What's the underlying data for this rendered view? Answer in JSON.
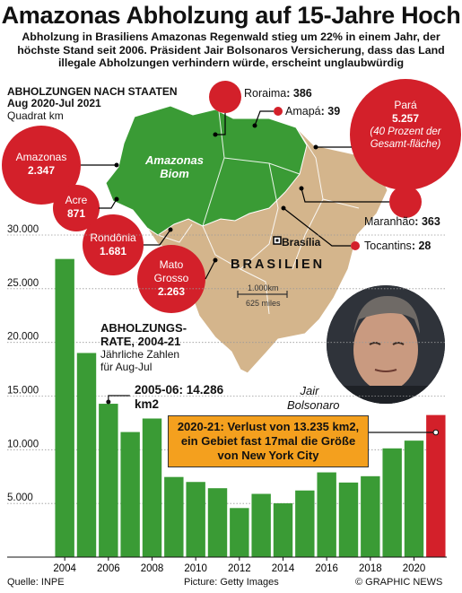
{
  "title": "Amazonas Abholzung auf 15-Jahre Hoch",
  "subtitle": "Abholzung in Brasiliens Amazonas Regenwald stieg um 22% in einem Jahr, der höchste Stand seit 2006. Präsident Jair Bolsonaros Versicherung, dass das Land illegale Abholzungen verhindern würde, erscheint unglaubwürdig",
  "map": {
    "heading_line1": "ABHOLZUNGEN NACH STAATEN",
    "heading_line2": "Aug 2020-Jul 2021",
    "unit": "Quadrat km",
    "biome_label_1": "Amazonas",
    "biome_label_2": "Biom",
    "capital": "Brasília",
    "country": "BRASILIEN",
    "scale_km": "1.000km",
    "scale_miles": "625 miles",
    "colors": {
      "amazon": "#3a9b35",
      "land": "#d4b58c",
      "bubble": "#d3202a"
    },
    "states": [
      {
        "name": "Roraima",
        "value": "386"
      },
      {
        "name": "Amapá",
        "value": "39"
      },
      {
        "name": "Pará",
        "value": "5.257",
        "note": "(40 Prozent der Gesamt-fläche)"
      },
      {
        "name": "Amazonas",
        "value": "2.347"
      },
      {
        "name": "Acre",
        "value": "871"
      },
      {
        "name": "Rondônia",
        "value": "1.681"
      },
      {
        "name": "Mato Grosso",
        "value": "2.263"
      },
      {
        "name": "Maranhão",
        "value": "363"
      },
      {
        "name": "Tocantins",
        "value": "28"
      }
    ]
  },
  "chart_data": {
    "type": "bar",
    "title": "ABHOLZUNGS-RATE, 2004-21",
    "subtitle": "Jährliche Zahlen für Aug-Jul",
    "x": [
      2004,
      2005,
      2006,
      2007,
      2008,
      2009,
      2010,
      2011,
      2012,
      2013,
      2014,
      2015,
      2016,
      2017,
      2018,
      2019,
      2020,
      2021
    ],
    "values": [
      27772,
      19014,
      14286,
      11651,
      12911,
      7464,
      7000,
      6418,
      4571,
      5891,
      5012,
      6207,
      7893,
      6947,
      7536,
      10129,
      10851,
      13235
    ],
    "xticks": [
      "2004",
      "2006",
      "2008",
      "2010",
      "2012",
      "2014",
      "2016",
      "2018",
      "2020"
    ],
    "yticks": [
      "5.000",
      "10.000",
      "15.000",
      "20.000",
      "25.000",
      "30.000"
    ],
    "ylim": [
      0,
      30000
    ],
    "colors": {
      "bar": "#3a9b35",
      "highlight": "#d3202a"
    },
    "annotation_2006": "2005-06: 14.286 km2",
    "annotation_2021": "2020-21: Verlust von 13.235 km2, ein Gebiet fast 17mal die Größe von New York City"
  },
  "photo_caption": "Jair Bolsonaro",
  "footer": {
    "source": "Quelle: INPE",
    "picture": "Picture: Getty Images",
    "brand": "© GRAPHIC NEWS"
  }
}
